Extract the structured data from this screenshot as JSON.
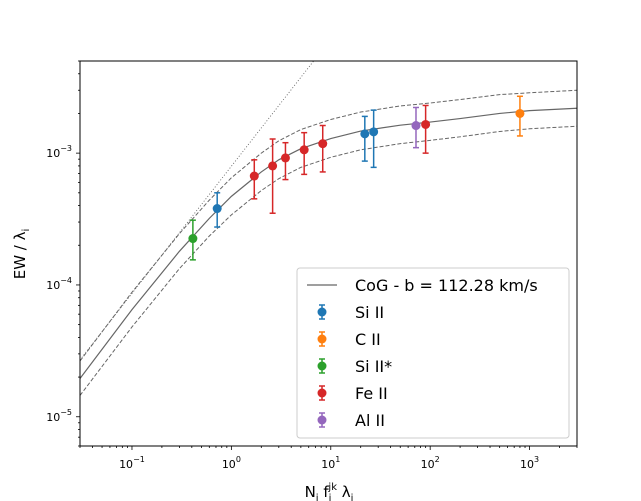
{
  "chart_data": {
    "type": "scatter",
    "title": "",
    "xlabel": "N_i f_i^jk λ_i",
    "ylabel": "EW / λ_i",
    "xscale": "log",
    "yscale": "log",
    "xlim": [
      0.03,
      3000
    ],
    "ylim": [
      6e-06,
      0.005
    ],
    "x_ticks": [
      {
        "value": 0.1,
        "base": "10",
        "exp": "−1"
      },
      {
        "value": 1,
        "base": "10",
        "exp": "0"
      },
      {
        "value": 10,
        "base": "10",
        "exp": "1"
      },
      {
        "value": 100,
        "base": "10",
        "exp": "2"
      },
      {
        "value": 1000,
        "base": "10",
        "exp": "3"
      }
    ],
    "y_ticks": [
      {
        "value": 1e-05,
        "base": "10",
        "exp": "−5"
      },
      {
        "value": 0.0001,
        "base": "10",
        "exp": "−4"
      },
      {
        "value": 0.001,
        "base": "10",
        "exp": "−3"
      }
    ],
    "legend_position": "lower-right",
    "curve": {
      "label": "CoG - b = 112.28 km/s",
      "color": "#666666",
      "x": [
        0.03,
        0.1,
        0.3,
        0.6,
        1,
        2,
        3,
        5,
        10,
        20,
        50,
        100,
        200,
        500,
        1000,
        3000
      ],
      "y": [
        1.95e-05,
        6.5e-05,
        0.00018,
        0.00032,
        0.00047,
        0.00072,
        0.00089,
        0.00108,
        0.00129,
        0.00147,
        0.00163,
        0.00172,
        0.00183,
        0.002,
        0.0021,
        0.00219
      ],
      "upper": [
        2.65e-05,
        8.8e-05,
        0.000245,
        0.00044,
        0.00065,
        0.001,
        0.00124,
        0.00151,
        0.0018,
        0.00205,
        0.00228,
        0.0024,
        0.00255,
        0.00278,
        0.00287,
        0.003
      ],
      "lower": [
        1.45e-05,
        4.8e-05,
        0.000133,
        0.000235,
        0.00034,
        0.00052,
        0.00064,
        0.00078,
        0.00093,
        0.00106,
        0.00118,
        0.00125,
        0.00133,
        0.00146,
        0.00153,
        0.0016
      ]
    },
    "linear_line": {
      "x": [
        0.03,
        7
      ],
      "y": [
        2.7e-05,
        0.0052
      ]
    },
    "series": [
      {
        "name": "Si II",
        "color": "#1f77b4",
        "points": [
          {
            "x": 0.72,
            "y": 0.00038,
            "yerr_low": 0.000275,
            "yerr_high": 0.0005
          },
          {
            "x": 22,
            "y": 0.0014,
            "yerr_low": 0.00087,
            "yerr_high": 0.0019
          },
          {
            "x": 27,
            "y": 0.00145,
            "yerr_low": 0.00078,
            "yerr_high": 0.00212
          }
        ]
      },
      {
        "name": "C II",
        "color": "#ff7f0e",
        "points": [
          {
            "x": 800,
            "y": 0.002,
            "yerr_low": 0.00135,
            "yerr_high": 0.0027
          }
        ]
      },
      {
        "name": "Si II*",
        "color": "#2ca02c",
        "points": [
          {
            "x": 0.41,
            "y": 0.000225,
            "yerr_low": 0.000155,
            "yerr_high": 0.00031
          }
        ]
      },
      {
        "name": "Fe II",
        "color": "#d62728",
        "points": [
          {
            "x": 1.7,
            "y": 0.00067,
            "yerr_low": 0.00045,
            "yerr_high": 0.00089
          },
          {
            "x": 2.6,
            "y": 0.0008,
            "yerr_low": 0.00035,
            "yerr_high": 0.00128
          },
          {
            "x": 3.5,
            "y": 0.00092,
            "yerr_low": 0.00063,
            "yerr_high": 0.0012
          },
          {
            "x": 5.4,
            "y": 0.00106,
            "yerr_low": 0.00069,
            "yerr_high": 0.00143
          },
          {
            "x": 8.3,
            "y": 0.00118,
            "yerr_low": 0.00072,
            "yerr_high": 0.00162
          },
          {
            "x": 90,
            "y": 0.00165,
            "yerr_low": 0.001,
            "yerr_high": 0.0023
          }
        ]
      },
      {
        "name": "Al II",
        "color": "#9467bd",
        "points": [
          {
            "x": 72,
            "y": 0.00162,
            "yerr_low": 0.0011,
            "yerr_high": 0.00222
          }
        ]
      }
    ]
  }
}
